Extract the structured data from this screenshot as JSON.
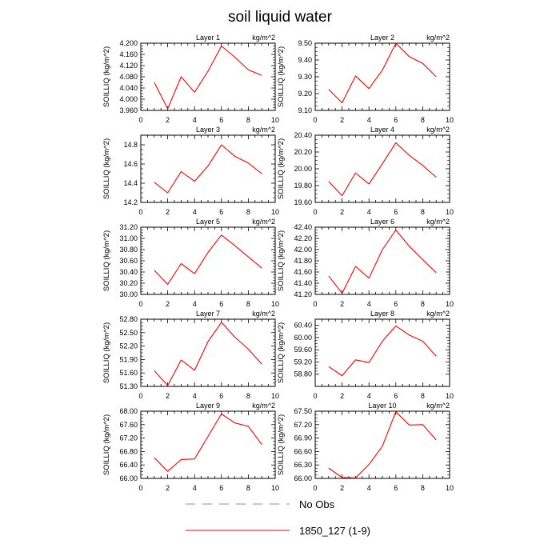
{
  "title": "soil liquid water",
  "colors": {
    "model": "#ff0000",
    "obs": "#8080ff",
    "axis": "#000000"
  },
  "legend": {
    "obs_label": "No Obs",
    "model_label": "1850_127 (1-9)"
  },
  "chart_data": [
    {
      "type": "line",
      "title": "Layer 1",
      "units": "kg/m^2",
      "ylabel": "SOILLIQ  (kg/m^2)",
      "xlim": [
        0,
        10
      ],
      "xticks": [
        0,
        2,
        4,
        6,
        8,
        10
      ],
      "ylim": [
        3.96,
        4.2
      ],
      "yticks": [
        "3.960",
        "4.000",
        "4.040",
        "4.080",
        "4.120",
        "4.160",
        "4.200"
      ],
      "yvals": [
        3.96,
        4.0,
        4.04,
        4.08,
        4.12,
        4.16,
        4.2
      ],
      "series": [
        {
          "name": "1850_127 (1-9)",
          "x": [
            1,
            2,
            3,
            4,
            5,
            6,
            7,
            8,
            9
          ],
          "y": [
            4.06,
            3.966,
            4.08,
            4.025,
            4.1,
            4.19,
            4.15,
            4.105,
            4.085
          ]
        }
      ]
    },
    {
      "type": "line",
      "title": "Layer 2",
      "units": "kg/m^2",
      "ylabel": "SOILLIQ  (kg/m^2)",
      "xlim": [
        0,
        10
      ],
      "xticks": [
        0,
        2,
        4,
        6,
        8,
        10
      ],
      "ylim": [
        9.1,
        9.5
      ],
      "yticks": [
        "9.10",
        "9.20",
        "9.30",
        "9.40",
        "9.50"
      ],
      "yvals": [
        9.1,
        9.2,
        9.3,
        9.4,
        9.5
      ],
      "series": [
        {
          "name": "1850_127 (1-9)",
          "x": [
            1,
            2,
            3,
            4,
            5,
            6,
            7,
            8,
            9
          ],
          "y": [
            9.225,
            9.145,
            9.305,
            9.23,
            9.34,
            9.5,
            9.42,
            9.38,
            9.3
          ]
        }
      ]
    },
    {
      "type": "line",
      "title": "Layer 3",
      "units": "kg/m^2",
      "ylabel": "SOILLIQ  (kg/m^2)",
      "xlim": [
        0,
        10
      ],
      "xticks": [
        0,
        2,
        4,
        6,
        8,
        10
      ],
      "ylim": [
        14.2,
        14.9
      ],
      "yticks": [
        "14.2",
        "14.4",
        "14.6",
        "14.8"
      ],
      "yvals": [
        14.2,
        14.4,
        14.6,
        14.8
      ],
      "series": [
        {
          "name": "1850_127 (1-9)",
          "x": [
            1,
            2,
            3,
            4,
            5,
            6,
            7,
            8,
            9
          ],
          "y": [
            14.41,
            14.3,
            14.52,
            14.42,
            14.58,
            14.8,
            14.68,
            14.61,
            14.5
          ]
        }
      ]
    },
    {
      "type": "line",
      "title": "Layer 4",
      "units": "kg/m^2",
      "ylabel": "SOILLIQ  (kg/m^2)",
      "xlim": [
        0,
        10
      ],
      "xticks": [
        0,
        2,
        4,
        6,
        8,
        10
      ],
      "ylim": [
        19.6,
        20.4
      ],
      "yticks": [
        "19.60",
        "19.80",
        "20.00",
        "20.20",
        "20.40"
      ],
      "yvals": [
        19.6,
        19.8,
        20.0,
        20.2,
        20.4
      ],
      "series": [
        {
          "name": "1850_127 (1-9)",
          "x": [
            1,
            2,
            3,
            4,
            5,
            6,
            7,
            8,
            9
          ],
          "y": [
            19.85,
            19.68,
            19.95,
            19.82,
            20.06,
            20.31,
            20.16,
            20.04,
            19.9
          ]
        }
      ]
    },
    {
      "type": "line",
      "title": "Layer 5",
      "units": "kg/m^2",
      "ylabel": "SOILLIQ  (kg/m^2)",
      "xlim": [
        0,
        10
      ],
      "xticks": [
        0,
        2,
        4,
        6,
        8,
        10
      ],
      "ylim": [
        30.0,
        31.2
      ],
      "yticks": [
        "30.00",
        "30.20",
        "30.40",
        "30.60",
        "30.80",
        "31.00",
        "31.20"
      ],
      "yvals": [
        30.0,
        30.2,
        30.4,
        30.6,
        30.8,
        31.0,
        31.2
      ],
      "series": [
        {
          "name": "1850_127 (1-9)",
          "x": [
            1,
            2,
            3,
            4,
            5,
            6,
            7,
            8,
            9
          ],
          "y": [
            30.43,
            30.18,
            30.55,
            30.37,
            30.75,
            31.06,
            30.87,
            30.67,
            30.47
          ]
        }
      ]
    },
    {
      "type": "line",
      "title": "Layer 6",
      "units": "kg/m^2",
      "ylabel": "SOILLIQ  (kg/m^2)",
      "xlim": [
        0,
        10
      ],
      "xticks": [
        0,
        2,
        4,
        6,
        8,
        10
      ],
      "ylim": [
        41.2,
        42.4
      ],
      "yticks": [
        "41.20",
        "41.40",
        "41.60",
        "41.80",
        "42.00",
        "42.20",
        "42.40"
      ],
      "yvals": [
        41.2,
        41.4,
        41.6,
        41.8,
        42.0,
        42.2,
        42.4
      ],
      "series": [
        {
          "name": "1850_127 (1-9)",
          "x": [
            1,
            2,
            3,
            4,
            5,
            6,
            7,
            8,
            9
          ],
          "y": [
            41.53,
            41.22,
            41.7,
            41.49,
            42.0,
            42.35,
            42.06,
            41.82,
            41.59
          ]
        }
      ]
    },
    {
      "type": "line",
      "title": "Layer 7",
      "units": "kg/m^2",
      "ylabel": "SOILLIQ  (kg/m^2)",
      "xlim": [
        0,
        10
      ],
      "xticks": [
        0,
        2,
        4,
        6,
        8,
        10
      ],
      "ylim": [
        51.3,
        52.8
      ],
      "yticks": [
        "51.30",
        "51.60",
        "51.90",
        "52.20",
        "52.50",
        "52.80"
      ],
      "yvals": [
        51.3,
        51.6,
        51.9,
        52.2,
        52.5,
        52.8
      ],
      "series": [
        {
          "name": "1850_127 (1-9)",
          "x": [
            1,
            2,
            3,
            4,
            5,
            6,
            7,
            8,
            9
          ],
          "y": [
            51.65,
            51.32,
            51.89,
            51.66,
            52.3,
            52.73,
            52.4,
            52.13,
            51.8
          ]
        }
      ]
    },
    {
      "type": "line",
      "title": "Layer 8",
      "units": "kg/m^2",
      "ylabel": "SOILLIQ  (kg/m^2)",
      "xlim": [
        0,
        10
      ],
      "xticks": [
        0,
        2,
        4,
        6,
        8,
        10
      ],
      "ylim": [
        58.4,
        60.6
      ],
      "yticks": [
        "58.80",
        "59.20",
        "59.60",
        "60.00",
        "60.40"
      ],
      "yvals": [
        58.8,
        59.2,
        59.6,
        60.0,
        60.4
      ],
      "series": [
        {
          "name": "1850_127 (1-9)",
          "x": [
            1,
            2,
            3,
            4,
            5,
            6,
            7,
            8,
            9
          ],
          "y": [
            59.05,
            58.75,
            59.27,
            59.18,
            59.88,
            60.38,
            60.08,
            59.88,
            59.39
          ]
        }
      ]
    },
    {
      "type": "line",
      "title": "Layer 9",
      "units": "kg/m^2",
      "ylabel": "SOILLIQ  (kg/m^2)",
      "xlim": [
        0,
        10
      ],
      "xticks": [
        0,
        2,
        4,
        6,
        8,
        10
      ],
      "ylim": [
        66.0,
        68.0
      ],
      "yticks": [
        "66.00",
        "66.40",
        "66.80",
        "67.20",
        "67.60",
        "68.00"
      ],
      "yvals": [
        66.0,
        66.4,
        66.8,
        67.2,
        67.6,
        68.0
      ],
      "series": [
        {
          "name": "1850_127 (1-9)",
          "x": [
            1,
            2,
            3,
            4,
            5,
            6,
            7,
            8,
            9
          ],
          "y": [
            66.62,
            66.21,
            66.56,
            66.58,
            67.25,
            67.92,
            67.65,
            67.55,
            67.01
          ]
        }
      ]
    },
    {
      "type": "line",
      "title": "Layer 10",
      "units": "kg/m^2",
      "ylabel": "SOILLIQ  (kg/m^2)",
      "xlim": [
        0,
        10
      ],
      "xticks": [
        0,
        2,
        4,
        6,
        8,
        10
      ],
      "ylim": [
        66.0,
        67.5
      ],
      "yticks": [
        "66.00",
        "66.30",
        "66.60",
        "66.90",
        "67.20",
        "67.50"
      ],
      "yvals": [
        66.0,
        66.3,
        66.6,
        66.9,
        67.2,
        67.5
      ],
      "series": [
        {
          "name": "1850_127 (1-9)",
          "x": [
            1,
            2,
            3,
            4,
            5,
            6,
            7,
            8,
            9
          ],
          "y": [
            66.23,
            66.02,
            66.01,
            66.31,
            66.72,
            67.49,
            67.19,
            67.2,
            66.86
          ]
        }
      ]
    }
  ]
}
